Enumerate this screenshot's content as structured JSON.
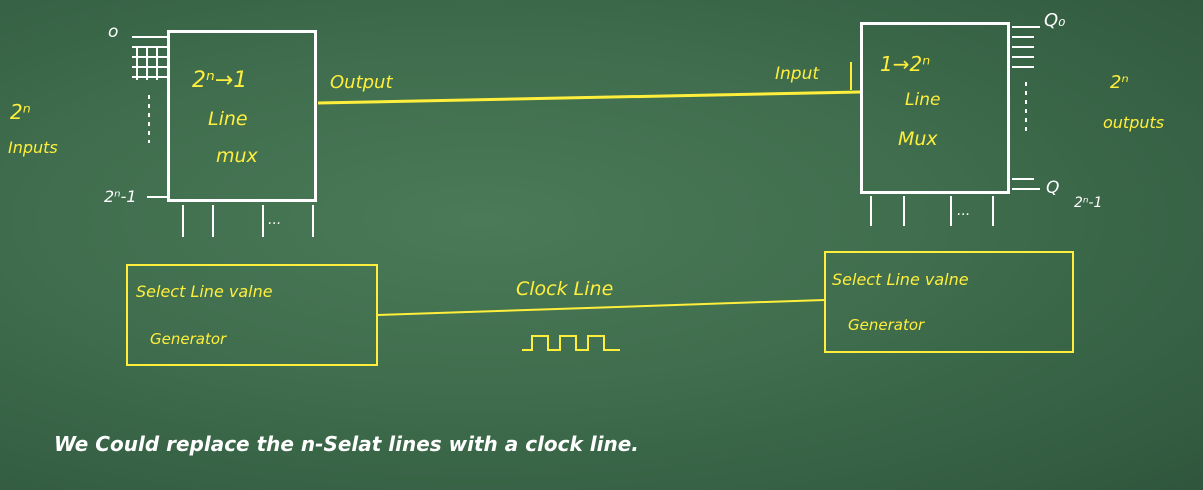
{
  "left_mux": {
    "title": "2ⁿ→1",
    "line1": "Line",
    "line2": "mux",
    "input_label_top": "o",
    "input_label_bottom": "2ⁿ-1",
    "inputs_label_1": "2ⁿ",
    "inputs_label_2": "Inputs",
    "output_label": "Output"
  },
  "right_demux": {
    "title": "1→2ⁿ",
    "line1": "Line",
    "line2": "Mux",
    "input_label": "Input",
    "output_top": "Q₀",
    "output_bottom_q": "Q",
    "output_bottom_sub": "2ⁿ-1",
    "outputs_label_1": "2ⁿ",
    "outputs_label_2": "outputs"
  },
  "left_generator": {
    "line1": "Select Line valne",
    "line2": "Generator"
  },
  "right_generator": {
    "line1": "Select Line valne",
    "line2": "Generator"
  },
  "clock": {
    "label": "Clock Line",
    "waveform_icon": "square-wave-icon"
  },
  "caption": "We Could replace the n-Selat lines with a clock line."
}
